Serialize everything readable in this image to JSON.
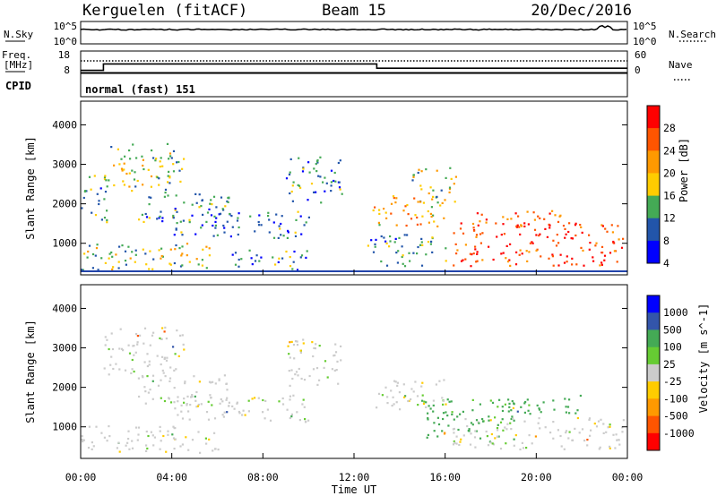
{
  "header": {
    "station": "Kerguelen (fitACF)",
    "beam": "Beam 15",
    "date": "20/Dec/2016"
  },
  "noise_panel": {
    "left_label": "N.Sky",
    "right_label": "N.Search",
    "left_ticks": [
      "10^5",
      "10^0"
    ],
    "right_ticks": [
      "10^5",
      "10^0"
    ]
  },
  "freq_panel": {
    "left_label_1": "Freq.",
    "left_label_2": "[MHz]",
    "left_ticks": [
      "18",
      "8"
    ],
    "right_label": "Nave",
    "right_ticks": [
      "60",
      "0"
    ]
  },
  "cpid_panel": {
    "label": "CPID",
    "mode": "normal (fast) 151"
  },
  "power_panel": {
    "ylabel": "Slant Range [km]",
    "yticks": [
      "4000",
      "3000",
      "2000",
      "1000"
    ],
    "cbar_label": "Power [dB]",
    "cbar_ticks": [
      "28",
      "24",
      "20",
      "16",
      "12",
      "8",
      "4"
    ],
    "cbar_colors": [
      "#ff0000",
      "#ff5500",
      "#ff9900",
      "#ffcc00",
      "#44aa55",
      "#2255aa",
      "#0000ff"
    ]
  },
  "velocity_panel": {
    "ylabel": "Slant Range [km]",
    "yticks": [
      "4000",
      "3000",
      "2000",
      "1000"
    ],
    "cbar_label": "Velocity [m s^-1]",
    "cbar_ticks": [
      "1000",
      "500",
      "100",
      "25",
      "-25",
      "-100",
      "-500",
      "-1000"
    ],
    "cbar_colors": [
      "#0000ff",
      "#3355aa",
      "#44aa55",
      "#66cc33",
      "#cccccc",
      "#ffcc00",
      "#ff9900",
      "#ff5500",
      "#ff0000"
    ]
  },
  "xaxis": {
    "ticks": [
      "00:00",
      "04:00",
      "08:00",
      "12:00",
      "16:00",
      "20:00",
      "00:00"
    ],
    "label": "Time UT"
  },
  "chart_data": {
    "type": "heatmap",
    "xlim": [
      0,
      24
    ],
    "ylim": [
      200,
      4600
    ],
    "frequency_mhz": {
      "x": [
        0,
        1,
        13,
        24
      ],
      "values": [
        9,
        12,
        10,
        10
      ]
    },
    "power_regions": [
      {
        "t": [
          1.0,
          4.5
        ],
        "r": [
          2300,
          3500
        ],
        "db": 14
      },
      {
        "t": [
          2.5,
          6.5
        ],
        "r": [
          1500,
          2300
        ],
        "db": 10
      },
      {
        "t": [
          4.0,
          10.0
        ],
        "r": [
          1100,
          1800
        ],
        "db": 9
      },
      {
        "t": [
          0.0,
          1.2
        ],
        "r": [
          1500,
          2700
        ],
        "db": 9
      },
      {
        "t": [
          0.0,
          6.0
        ],
        "r": [
          300,
          1000
        ],
        "db": 14
      },
      {
        "t": [
          6.5,
          10.0
        ],
        "r": [
          300,
          800
        ],
        "db": 10
      },
      {
        "t": [
          9.0,
          11.5
        ],
        "r": [
          2000,
          3200
        ],
        "db": 10
      },
      {
        "t": [
          12.8,
          16.0
        ],
        "r": [
          1400,
          2200
        ],
        "db": 19
      },
      {
        "t": [
          14.5,
          16.5
        ],
        "r": [
          2000,
          2900
        ],
        "db": 15
      },
      {
        "t": [
          12.5,
          16.0
        ],
        "r": [
          400,
          1200
        ],
        "db": 11
      },
      {
        "t": [
          16.3,
          23.8
        ],
        "r": [
          400,
          1500
        ],
        "db": 26
      },
      {
        "t": [
          17.0,
          21.5
        ],
        "r": [
          1400,
          1800
        ],
        "db": 24
      }
    ],
    "velocity_regions": [
      {
        "t": [
          1.0,
          4.5
        ],
        "r": [
          2300,
          3500
        ],
        "v": 0
      },
      {
        "t": [
          2.5,
          6.5
        ],
        "r": [
          1500,
          2300
        ],
        "v": 0
      },
      {
        "t": [
          4.0,
          10.0
        ],
        "r": [
          1100,
          1800
        ],
        "v": 0
      },
      {
        "t": [
          0.0,
          6.0
        ],
        "r": [
          300,
          1000
        ],
        "v": 0
      },
      {
        "t": [
          9.0,
          11.5
        ],
        "r": [
          2000,
          3200
        ],
        "v": 0
      },
      {
        "t": [
          12.8,
          16.0
        ],
        "r": [
          1400,
          2200
        ],
        "v": 0
      },
      {
        "t": [
          15.0,
          19.0
        ],
        "r": [
          600,
          1700
        ],
        "v": 120
      },
      {
        "t": [
          18.0,
          22.0
        ],
        "r": [
          1300,
          1800
        ],
        "v": 400
      },
      {
        "t": [
          16.3,
          23.8
        ],
        "r": [
          400,
          1200
        ],
        "v": 0
      }
    ]
  }
}
